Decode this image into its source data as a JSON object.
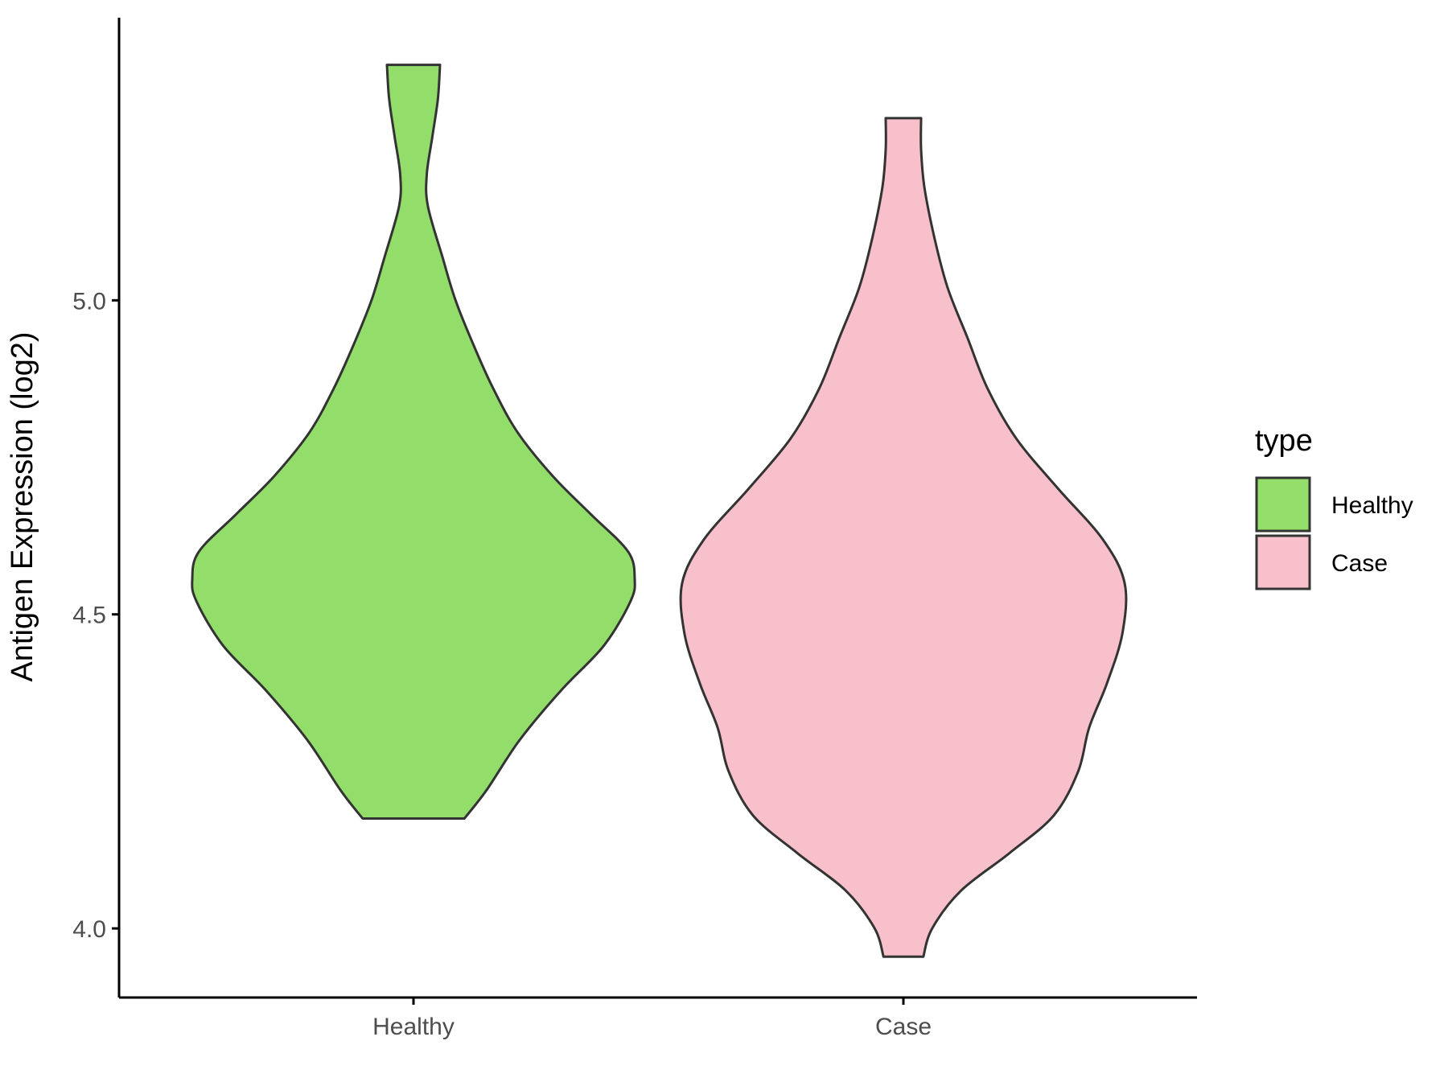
{
  "chart_data": {
    "type": "violin",
    "title": "",
    "xlabel": "",
    "ylabel": "Antigen Expression (log2)",
    "categories": [
      "Healthy",
      "Case"
    ],
    "ylim": [
      3.89,
      5.45
    ],
    "yticks": [
      "4.0",
      "4.5",
      "5.0"
    ],
    "grid": false,
    "legend": {
      "title": "type",
      "position": "right",
      "entries": [
        {
          "label": "Healthy",
          "color": "#93DD6B"
        },
        {
          "label": "Case",
          "color": "#F7C0CB"
        }
      ]
    },
    "series": [
      {
        "name": "Healthy",
        "color": "#93DD6B",
        "min": 4.175,
        "max": 5.375,
        "density": [
          [
            4.175,
            0.23
          ],
          [
            4.22,
            0.33
          ],
          [
            4.3,
            0.48
          ],
          [
            4.38,
            0.67
          ],
          [
            4.45,
            0.86
          ],
          [
            4.52,
            0.98
          ],
          [
            4.556,
            1.0
          ],
          [
            4.6,
            0.97
          ],
          [
            4.66,
            0.8
          ],
          [
            4.72,
            0.63
          ],
          [
            4.79,
            0.47
          ],
          [
            4.86,
            0.36
          ],
          [
            4.93,
            0.27
          ],
          [
            5.0,
            0.19
          ],
          [
            5.07,
            0.13
          ],
          [
            5.15,
            0.065
          ],
          [
            5.2,
            0.06
          ],
          [
            5.26,
            0.085
          ],
          [
            5.32,
            0.11
          ],
          [
            5.375,
            0.12
          ]
        ]
      },
      {
        "name": "Case",
        "color": "#F7C0CB",
        "min": 3.955,
        "max": 5.29,
        "density": [
          [
            3.955,
            0.09
          ],
          [
            4.0,
            0.13
          ],
          [
            4.06,
            0.26
          ],
          [
            4.12,
            0.48
          ],
          [
            4.18,
            0.68
          ],
          [
            4.25,
            0.79
          ],
          [
            4.32,
            0.84
          ],
          [
            4.39,
            0.92
          ],
          [
            4.47,
            0.99
          ],
          [
            4.55,
            1.0
          ],
          [
            4.62,
            0.9
          ],
          [
            4.7,
            0.7
          ],
          [
            4.78,
            0.51
          ],
          [
            4.86,
            0.38
          ],
          [
            4.94,
            0.29
          ],
          [
            5.02,
            0.2
          ],
          [
            5.1,
            0.14
          ],
          [
            5.18,
            0.095
          ],
          [
            5.24,
            0.08
          ],
          [
            5.29,
            0.08
          ]
        ]
      }
    ]
  }
}
